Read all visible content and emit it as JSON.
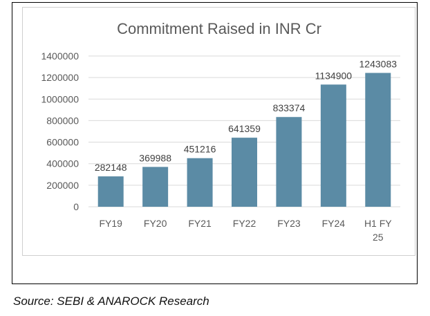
{
  "chart_data": {
    "type": "bar",
    "title": "Commitment Raised in INR Cr",
    "categories": [
      "FY19",
      "FY20",
      "FY21",
      "FY22",
      "FY23",
      "FY24",
      "H1 FY 25"
    ],
    "category_lines": [
      [
        "FY19"
      ],
      [
        "FY20"
      ],
      [
        "FY21"
      ],
      [
        "FY22"
      ],
      [
        "FY23"
      ],
      [
        "FY24"
      ],
      [
        "H1 FY",
        "25"
      ]
    ],
    "values": [
      282148,
      369988,
      451216,
      641359,
      833374,
      1134900,
      1243083
    ],
    "data_labels": [
      "282148",
      "369988",
      "451216",
      "641359",
      "833374",
      "1134900",
      "1243083"
    ],
    "xlabel": "",
    "ylabel": "",
    "ylim": [
      0,
      1400000
    ],
    "yticks": [
      0,
      200000,
      400000,
      600000,
      800000,
      1000000,
      1200000,
      1400000
    ],
    "ytick_labels": [
      "0",
      "200000",
      "400000",
      "600000",
      "800000",
      "1000000",
      "1200000",
      "1400000"
    ],
    "grid": true,
    "bar_color": "#5b8ba5",
    "grid_color": "#d9d9d9"
  },
  "source": "Source: SEBI & ANAROCK Research"
}
